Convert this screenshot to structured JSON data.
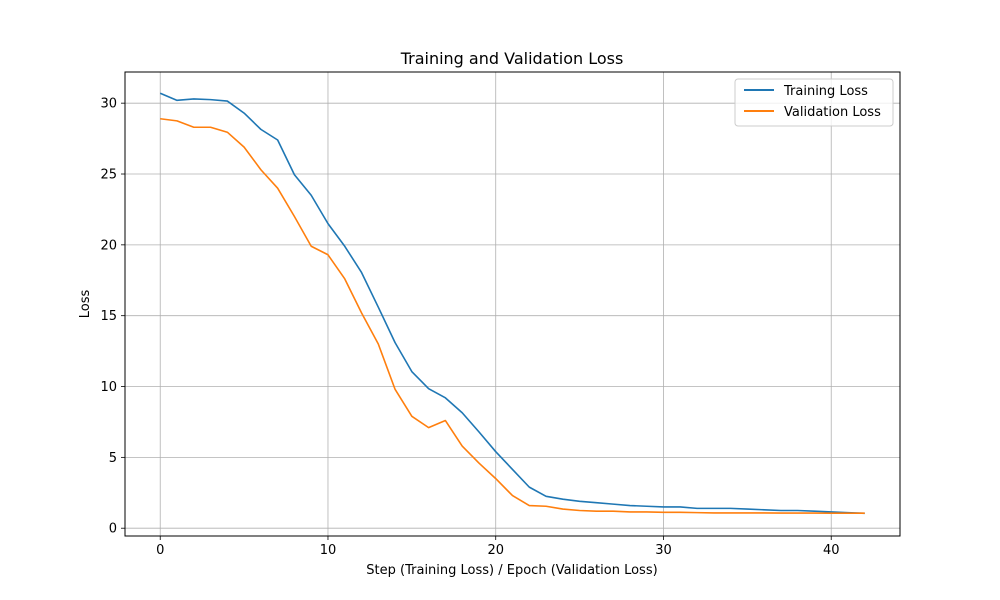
{
  "chart_data": {
    "type": "line",
    "title": "Training and Validation Loss",
    "xlabel": "Step (Training Loss) / Epoch (Validation Loss)",
    "ylabel": "Loss",
    "xlim": [
      -2.1,
      44.1
    ],
    "ylim": [
      -0.55,
      32.2
    ],
    "xticks": [
      0,
      10,
      20,
      30,
      40
    ],
    "yticks": [
      0,
      5,
      10,
      15,
      20,
      25,
      30
    ],
    "grid": true,
    "legend_position": "top-right",
    "x": [
      0,
      1,
      2,
      3,
      4,
      5,
      6,
      7,
      8,
      9,
      10,
      11,
      12,
      13,
      14,
      15,
      16,
      17,
      18,
      19,
      20,
      21,
      22,
      23,
      24,
      25,
      26,
      27,
      28,
      29,
      30,
      31,
      32,
      33,
      34,
      35,
      36,
      37,
      38,
      39,
      40,
      41,
      42
    ],
    "series": [
      {
        "name": "Training Loss",
        "color": "#1f77b4",
        "values": [
          30.7,
          30.2,
          30.3,
          30.25,
          30.15,
          29.3,
          28.15,
          27.4,
          24.95,
          23.5,
          21.5,
          19.9,
          18.05,
          15.6,
          13.1,
          11.05,
          9.85,
          9.2,
          8.15,
          6.8,
          5.4,
          4.15,
          2.9,
          2.25,
          2.05,
          1.9,
          1.8,
          1.7,
          1.6,
          1.55,
          1.5,
          1.5,
          1.4,
          1.4,
          1.4,
          1.35,
          1.3,
          1.25,
          1.25,
          1.2,
          1.15,
          1.1,
          1.05
        ]
      },
      {
        "name": "Validation Loss",
        "color": "#ff7f0e",
        "values": [
          28.9,
          28.75,
          28.3,
          28.3,
          27.95,
          26.9,
          25.3,
          24.0,
          22.0,
          19.9,
          19.3,
          17.6,
          15.2,
          13.0,
          9.8,
          7.9,
          7.1,
          7.6,
          5.8,
          4.6,
          3.5,
          2.3,
          1.6,
          1.55,
          1.35,
          1.25,
          1.2,
          1.2,
          1.15,
          1.15,
          1.12,
          1.12,
          1.1,
          1.08,
          1.08,
          1.08,
          1.08,
          1.07,
          1.07,
          1.07,
          1.06,
          1.06,
          1.06
        ]
      }
    ]
  }
}
